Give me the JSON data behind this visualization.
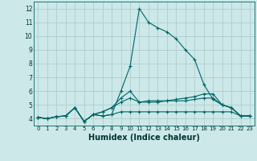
{
  "title": "",
  "xlabel": "Humidex (Indice chaleur)",
  "ylabel": "",
  "xlim": [
    -0.5,
    23.5
  ],
  "ylim": [
    3.5,
    12.5
  ],
  "yticks": [
    4,
    5,
    6,
    7,
    8,
    9,
    10,
    11,
    12
  ],
  "xticks": [
    0,
    1,
    2,
    3,
    4,
    5,
    6,
    7,
    8,
    9,
    10,
    11,
    12,
    13,
    14,
    15,
    16,
    17,
    18,
    19,
    20,
    21,
    22,
    23
  ],
  "bg_color": "#cce8e8",
  "grid_color": "#b0cccc",
  "line_color": "#006666",
  "lines": [
    [
      4.1,
      4.0,
      4.15,
      4.2,
      4.8,
      3.8,
      4.3,
      4.2,
      4.3,
      6.0,
      7.8,
      12.0,
      11.0,
      10.6,
      10.3,
      9.8,
      9.0,
      8.3,
      6.5,
      5.4,
      5.0,
      4.8,
      4.2,
      4.2
    ],
    [
      4.1,
      4.0,
      4.15,
      4.2,
      4.8,
      3.8,
      4.3,
      4.5,
      4.8,
      5.5,
      6.0,
      5.2,
      5.3,
      5.3,
      5.3,
      5.4,
      5.5,
      5.6,
      5.8,
      5.8,
      5.0,
      4.8,
      4.2,
      4.2
    ],
    [
      4.1,
      4.0,
      4.15,
      4.2,
      4.8,
      3.8,
      4.3,
      4.5,
      4.8,
      5.2,
      5.5,
      5.2,
      5.2,
      5.2,
      5.3,
      5.3,
      5.3,
      5.4,
      5.5,
      5.5,
      5.0,
      4.8,
      4.2,
      4.2
    ],
    [
      4.1,
      4.0,
      4.15,
      4.2,
      4.8,
      3.8,
      4.3,
      4.2,
      4.3,
      4.5,
      4.5,
      4.5,
      4.5,
      4.5,
      4.5,
      4.5,
      4.5,
      4.5,
      4.5,
      4.5,
      4.5,
      4.5,
      4.2,
      4.2
    ]
  ],
  "xlabel_fontsize": 7,
  "tick_fontsize": 5,
  "xlabel_color": "#003333",
  "tick_color": "#003333"
}
